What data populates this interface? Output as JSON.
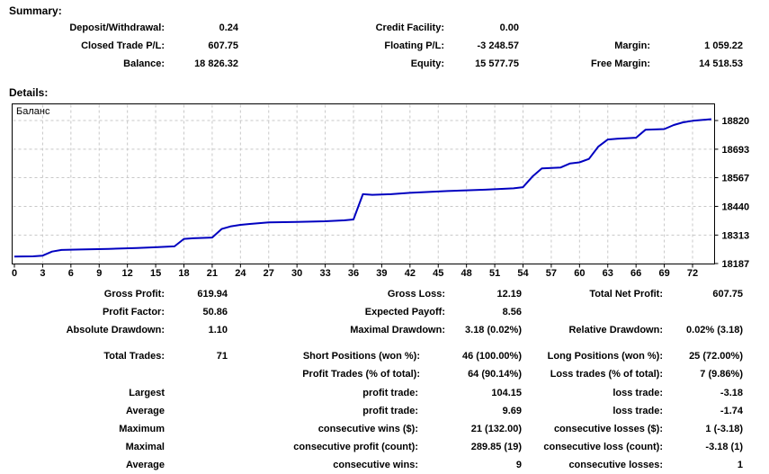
{
  "summary": {
    "heading": "Summary:",
    "rows": [
      {
        "cells": [
          {
            "label": "Deposit/Withdrawal:",
            "value": "0.24"
          },
          {
            "label": "Credit Facility:",
            "value": "0.00"
          },
          {
            "label": "",
            "value": ""
          }
        ]
      },
      {
        "cells": [
          {
            "label": "Closed Trade P/L:",
            "value": "607.75"
          },
          {
            "label": "Floating P/L:",
            "value": "-3 248.57"
          },
          {
            "label": "Margin:",
            "value": "1 059.22"
          }
        ]
      },
      {
        "cells": [
          {
            "label": "Balance:",
            "value": "18 826.32"
          },
          {
            "label": "Equity:",
            "value": "15 577.75"
          },
          {
            "label": "Free Margin:",
            "value": "14 518.53"
          }
        ]
      }
    ]
  },
  "details": {
    "heading": "Details:",
    "rows": [
      {
        "cells": [
          {
            "label": "Gross Profit:",
            "value": "619.94"
          },
          {
            "label": "Gross Loss:",
            "value": "12.19"
          },
          {
            "label": "Total Net Profit:",
            "value": "607.75"
          }
        ]
      },
      {
        "cells": [
          {
            "label": "Profit Factor:",
            "value": "50.86"
          },
          {
            "label": "Expected Payoff:",
            "value": "8.56"
          },
          {
            "label": "",
            "value": ""
          }
        ]
      },
      {
        "cells": [
          {
            "label": "Absolute Drawdown:",
            "value": "1.10"
          },
          {
            "label": "Maximal Drawdown:",
            "value": "3.18 (0.02%)"
          },
          {
            "label": "Relative Drawdown:",
            "value": "0.02% (3.18)"
          }
        ]
      },
      {
        "cells": [
          {
            "label": "Total Trades:",
            "value": "71"
          },
          {
            "label": "Short Positions (won %):",
            "value": "46 (100.00%)"
          },
          {
            "label": "Long Positions (won %):",
            "value": "25 (72.00%)"
          }
        ]
      },
      {
        "cells": [
          {
            "label": "",
            "value": ""
          },
          {
            "label": "Profit Trades (% of total):",
            "value": "64 (90.14%)"
          },
          {
            "label": "Loss trades (% of total):",
            "value": "7 (9.86%)"
          }
        ]
      },
      {
        "cells": [
          {
            "label": "Largest",
            "value": ""
          },
          {
            "label": "profit trade:",
            "value": "104.15"
          },
          {
            "label": "loss trade:",
            "value": "-3.18"
          }
        ]
      },
      {
        "cells": [
          {
            "label": "Average",
            "value": ""
          },
          {
            "label": "profit trade:",
            "value": "9.69"
          },
          {
            "label": "loss trade:",
            "value": "-1.74"
          }
        ]
      },
      {
        "cells": [
          {
            "label": "Maximum",
            "value": ""
          },
          {
            "label": "consecutive wins ($):",
            "value": "21 (132.00)"
          },
          {
            "label": "consecutive losses ($):",
            "value": "1 (-3.18)"
          }
        ]
      },
      {
        "cells": [
          {
            "label": "Maximal",
            "value": ""
          },
          {
            "label": "consecutive profit (count):",
            "value": "289.85 (19)"
          },
          {
            "label": "consecutive loss (count):",
            "value": "-3.18 (1)"
          }
        ]
      },
      {
        "cells": [
          {
            "label": "Average",
            "value": ""
          },
          {
            "label": "consecutive wins:",
            "value": "9"
          },
          {
            "label": "consecutive losses:",
            "value": "1"
          }
        ]
      }
    ]
  },
  "chart_data": {
    "type": "line",
    "title": "",
    "series_label": "Баланс",
    "xlabel": "",
    "ylabel": "",
    "x_ticks": [
      0,
      3,
      6,
      9,
      12,
      15,
      18,
      21,
      24,
      27,
      30,
      33,
      36,
      39,
      42,
      45,
      48,
      51,
      54,
      57,
      60,
      63,
      66,
      69,
      72
    ],
    "y_ticks": [
      18187,
      18313,
      18440,
      18567,
      18693,
      18820
    ],
    "xlim": [
      0,
      74.4
    ],
    "ylim": [
      18187,
      18892
    ],
    "grid": true,
    "legend_position": "top-left",
    "line_color": "#0000C0",
    "grid_color": "#c8c8c8",
    "axis_color": "#000000",
    "points": [
      [
        0,
        18218
      ],
      [
        2,
        18219
      ],
      [
        3,
        18222
      ],
      [
        4,
        18240
      ],
      [
        5,
        18247
      ],
      [
        7,
        18249
      ],
      [
        10,
        18252
      ],
      [
        13,
        18256
      ],
      [
        15,
        18259
      ],
      [
        17,
        18263
      ],
      [
        18,
        18296
      ],
      [
        19,
        18299
      ],
      [
        21,
        18302
      ],
      [
        22,
        18340
      ],
      [
        23,
        18352
      ],
      [
        24,
        18358
      ],
      [
        25,
        18362
      ],
      [
        27,
        18369
      ],
      [
        30,
        18371
      ],
      [
        33,
        18374
      ],
      [
        35,
        18378
      ],
      [
        36,
        18382
      ],
      [
        37,
        18494
      ],
      [
        38,
        18491
      ],
      [
        40,
        18494
      ],
      [
        42,
        18500
      ],
      [
        44,
        18504
      ],
      [
        46,
        18508
      ],
      [
        48,
        18511
      ],
      [
        50,
        18514
      ],
      [
        53,
        18520
      ],
      [
        54,
        18525
      ],
      [
        55,
        18572
      ],
      [
        56,
        18608
      ],
      [
        58,
        18612
      ],
      [
        59,
        18630
      ],
      [
        60,
        18635
      ],
      [
        61,
        18650
      ],
      [
        62,
        18705
      ],
      [
        63,
        18736
      ],
      [
        64,
        18739
      ],
      [
        66,
        18744
      ],
      [
        67,
        18779
      ],
      [
        69,
        18782
      ],
      [
        70,
        18800
      ],
      [
        71,
        18812
      ],
      [
        72,
        18819
      ],
      [
        74,
        18826
      ]
    ]
  }
}
